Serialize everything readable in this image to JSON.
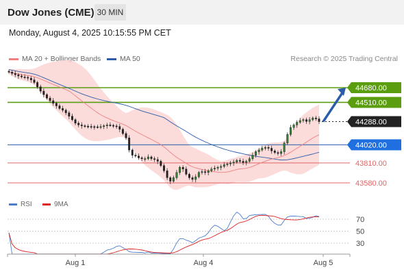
{
  "header": {
    "title": "Dow Jones (CME)",
    "timeframe": "30 MIN"
  },
  "date_line": "Monday, August 4, 2025 10:15:55 PM CET",
  "legend": {
    "ma20": "MA 20 + Bollinger Bands",
    "ma50": "MA 50",
    "credit": "Research © 2025 Trading Central"
  },
  "rsi_legend": {
    "rsi": "RSI",
    "ma9": "9MA"
  },
  "colors": {
    "resistance": "#5a9e10",
    "current": "#222222",
    "pivot": "#2a5ca8",
    "support": "#e06666",
    "bollinger": "#fbd5d5",
    "ma50": "#2a5ca8",
    "ma20": "#f08080",
    "rsi": "#4a7ccc",
    "rsi_ma": "#dd2222",
    "arrow": "#2a5ca8"
  },
  "chart_data": {
    "type": "candlestick",
    "x_labels": [
      "Aug 1",
      "Aug 4",
      "Aug 5"
    ],
    "levels": [
      {
        "value": 44680,
        "label": "44680.00",
        "kind": "resistance"
      },
      {
        "value": 44510,
        "label": "44510.00",
        "kind": "resistance"
      },
      {
        "value": 44288,
        "label": "44288.00",
        "kind": "current"
      },
      {
        "value": 44020,
        "label": "44020.00",
        "kind": "pivot"
      },
      {
        "value": 43810,
        "label": "43810.00",
        "kind": "support"
      },
      {
        "value": 43580,
        "label": "43580.00",
        "kind": "support"
      }
    ],
    "close": [
      44860,
      44845,
      44830,
      44815,
      44805,
      44800,
      44790,
      44770,
      44740,
      44690,
      44640,
      44600,
      44560,
      44530,
      44500,
      44470,
      44440,
      44420,
      44390,
      44350,
      44310,
      44270,
      44250,
      44240,
      44235,
      44232,
      44230,
      44228,
      44225,
      44230,
      44240,
      44250,
      44245,
      44238,
      44232,
      44200,
      44150,
      44100,
      43960,
      43900,
      43890,
      43870,
      43860,
      43860,
      43880,
      43860,
      43850,
      43830,
      43780,
      43720,
      43640,
      43600,
      43640,
      43700,
      43760,
      43740,
      43680,
      43640,
      43620,
      43650,
      43700,
      43710,
      43700,
      43720,
      43740,
      43750,
      43760,
      43770,
      43790,
      43800,
      43810,
      43820,
      43840,
      43830,
      43815,
      43830,
      43860,
      43900,
      43940,
      43960,
      43980,
      43990,
      43980,
      43950,
      43930,
      43920,
      43940,
      44040,
      44140,
      44220,
      44250,
      44280,
      44300,
      44310,
      44290,
      44310,
      44330,
      44320,
      44288
    ],
    "rsi": {
      "ticks": [
        70,
        50,
        30
      ],
      "ylim": [
        0,
        100
      ],
      "last_rsi": 68,
      "last_ma": 70
    },
    "trend_arrow": {
      "from": 44288,
      "to": 44680
    }
  }
}
